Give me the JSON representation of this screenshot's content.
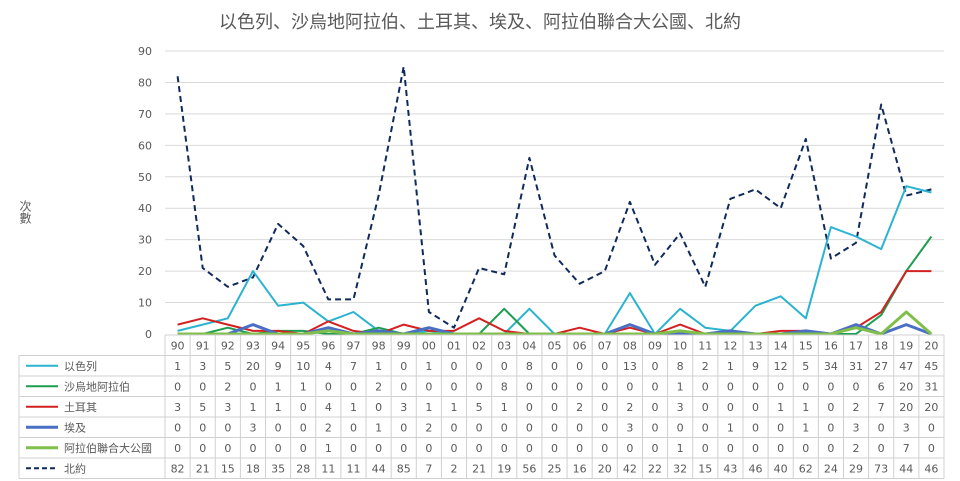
{
  "chart_data": {
    "type": "line",
    "title": "以色列、沙烏地阿拉伯、土耳其、埃及、阿拉伯聯合大公國、北約",
    "ylabel": "次數",
    "xlabel": "",
    "ylim": [
      0,
      90
    ],
    "yticks": [
      0,
      10,
      20,
      30,
      40,
      50,
      60,
      70,
      80,
      90
    ],
    "grid": true,
    "legend": "data-table",
    "x": [
      "90",
      "91",
      "92",
      "93",
      "94",
      "95",
      "96",
      "97",
      "98",
      "99",
      "00",
      "01",
      "02",
      "03",
      "04",
      "05",
      "06",
      "07",
      "08",
      "09",
      "10",
      "11",
      "12",
      "13",
      "14",
      "15",
      "16",
      "17",
      "18",
      "19",
      "20"
    ],
    "series": [
      {
        "name": "以色列",
        "color": "#2bb3cf",
        "dash": "solid",
        "values": [
          1,
          3,
          5,
          20,
          9,
          10,
          4,
          7,
          1,
          0,
          1,
          0,
          0,
          0,
          8,
          0,
          0,
          0,
          13,
          0,
          8,
          2,
          1,
          9,
          12,
          5,
          34,
          31,
          27,
          47,
          45
        ]
      },
      {
        "name": "沙烏地阿拉伯",
        "color": "#1e9e50",
        "dash": "solid",
        "values": [
          0,
          0,
          2,
          0,
          1,
          1,
          0,
          0,
          2,
          0,
          0,
          0,
          0,
          8,
          0,
          0,
          0,
          0,
          0,
          0,
          1,
          0,
          0,
          0,
          0,
          0,
          0,
          0,
          6,
          20,
          31
        ]
      },
      {
        "name": "土耳其",
        "color": "#d42020",
        "dash": "solid",
        "values": [
          3,
          5,
          3,
          1,
          1,
          0,
          4,
          1,
          0,
          3,
          1,
          1,
          5,
          1,
          0,
          0,
          2,
          0,
          2,
          0,
          3,
          0,
          0,
          0,
          1,
          1,
          0,
          2,
          7,
          20,
          20
        ]
      },
      {
        "name": "埃及",
        "color": "#4a6fc4",
        "dash": "solid",
        "values": [
          0,
          0,
          0,
          3,
          0,
          0,
          2,
          0,
          1,
          0,
          2,
          0,
          0,
          0,
          0,
          0,
          0,
          0,
          3,
          0,
          0,
          0,
          1,
          0,
          0,
          1,
          0,
          3,
          0,
          3,
          0
        ]
      },
      {
        "name": "阿拉伯聯合大公國",
        "color": "#7fbf4a",
        "dash": "solid",
        "values": [
          0,
          0,
          0,
          0,
          0,
          0,
          1,
          0,
          0,
          0,
          0,
          0,
          0,
          0,
          0,
          0,
          0,
          0,
          0,
          0,
          1,
          0,
          0,
          0,
          0,
          0,
          0,
          2,
          0,
          7,
          0
        ]
      },
      {
        "name": "北約",
        "color": "#0f2a5c",
        "dash": "dashed",
        "values": [
          82,
          21,
          15,
          18,
          35,
          28,
          11,
          11,
          44,
          85,
          7,
          2,
          21,
          19,
          56,
          25,
          16,
          20,
          42,
          22,
          32,
          15,
          43,
          46,
          40,
          62,
          24,
          29,
          73,
          44,
          46
        ]
      }
    ]
  }
}
